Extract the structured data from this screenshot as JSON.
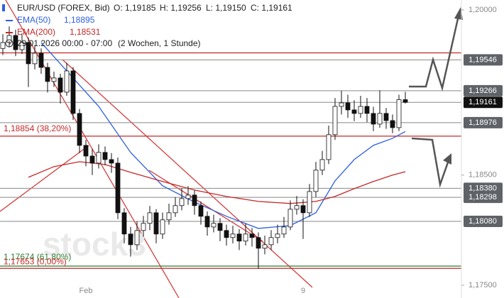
{
  "chart_data": {
    "type": "candlestick",
    "watermark": "stock3",
    "legend": {
      "symbol": "EUR/USD (FOREX, Bid)",
      "ohlc": [
        "O: 1,19185",
        "H: 1,19256",
        "L: 1,19150",
        "C: 1,19161"
      ],
      "time": "29.01.2026 00:00 - 07:00",
      "period": "(2 Wochen, 1 Stunde)"
    },
    "categories": [
      null,
      null,
      null,
      null,
      null,
      null,
      null,
      null,
      null,
      null,
      null,
      null,
      null,
      "Feb",
      null,
      null,
      null,
      null,
      null,
      null,
      null,
      null,
      null,
      null,
      null,
      null,
      null,
      null,
      null,
      null,
      null,
      null,
      null,
      null,
      null,
      null,
      null,
      null,
      null,
      null,
      null,
      null,
      null,
      null,
      null,
      null,
      null,
      "9",
      null,
      null,
      null,
      null,
      null,
      null,
      null,
      null,
      null,
      null,
      null,
      null,
      null,
      null,
      null,
      null
    ],
    "ylim": [
      1.17384,
      1.2009
    ],
    "yticks": [
      {
        "value": 1.2,
        "label": "1,20000"
      },
      {
        "value": 1.185,
        "label": "1,18500"
      },
      {
        "value": 1.175,
        "label": "1,17500"
      }
    ],
    "series": [
      {
        "name": "EUR/USD (FOREX, Bid)",
        "up_color": "#ffffff",
        "down_color": "#111111",
        "open": [
          1.1965,
          1.19704,
          1.19768,
          1.19639,
          1.19704,
          1.19511,
          1.19607,
          1.19478,
          1.1935,
          1.19382,
          1.19253,
          1.19446,
          1.1906,
          1.1877,
          1.18673,
          1.18609,
          1.18706,
          1.18641,
          1.18609,
          1.18158,
          1.17965,
          1.17868,
          1.17997,
          1.18062,
          1.18158,
          1.17965,
          1.18094,
          1.18158,
          1.18223,
          1.18287,
          1.18319,
          1.18223,
          1.18126,
          1.18029,
          1.18062,
          1.17997,
          1.17933,
          1.17965,
          1.17901,
          1.17965,
          1.17933,
          1.17836,
          1.17868,
          1.17933,
          1.17965,
          1.18029,
          1.1819,
          1.18223,
          1.18158,
          1.18351,
          1.18545,
          1.18641,
          1.18867,
          1.19124,
          1.19156,
          1.19092,
          1.1906,
          1.19124,
          1.1906,
          1.18963,
          1.1906,
          1.18995,
          1.18931,
          1.19185
        ],
        "high": [
          1.1978,
          1.1985,
          1.1982,
          1.1979,
          1.1975,
          1.1968,
          1.1965,
          1.1952,
          1.1944,
          1.1942,
          1.1952,
          1.1948,
          1.191,
          1.1882,
          1.1874,
          1.1878,
          1.1876,
          1.187,
          1.1866,
          1.182,
          1.1803,
          1.1808,
          1.1813,
          1.1822,
          1.1819,
          1.1816,
          1.1824,
          1.183,
          1.1838,
          1.184,
          1.1836,
          1.1826,
          1.1817,
          1.1814,
          1.1811,
          1.1805,
          1.1804,
          1.1801,
          1.1806,
          1.1802,
          1.1798,
          1.1795,
          1.18,
          1.1805,
          1.1812,
          1.1827,
          1.1831,
          1.1828,
          1.1842,
          1.1862,
          1.1872,
          1.1895,
          1.192,
          1.19266,
          1.1923,
          1.1918,
          1.1922,
          1.192,
          1.1912,
          1.1927,
          1.1911,
          1.1905,
          1.1923,
          1.19256
        ],
        "low": [
          1.1959,
          1.1966,
          1.1958,
          1.196,
          1.193,
          1.1946,
          1.1942,
          1.1925,
          1.193,
          1.1915,
          1.1922,
          1.19,
          1.187,
          1.1858,
          1.185,
          1.1856,
          1.1859,
          1.1852,
          1.181,
          1.1788,
          1.1776,
          1.1782,
          1.1794,
          1.18,
          1.1788,
          1.1792,
          1.1805,
          1.1812,
          1.1818,
          1.1823,
          1.1814,
          1.1805,
          1.1795,
          1.1798,
          1.179,
          1.1786,
          1.1788,
          1.1782,
          1.1786,
          1.1785,
          1.1765,
          1.1778,
          1.1782,
          1.1788,
          1.1793,
          1.18,
          1.1814,
          1.1792,
          1.1812,
          1.183,
          1.185,
          1.186,
          1.1882,
          1.1905,
          1.1902,
          1.1899,
          1.1902,
          1.1898,
          1.189,
          1.1893,
          1.1892,
          1.1888,
          1.189,
          1.1915
        ],
        "close": [
          1.19704,
          1.19768,
          1.19639,
          1.19704,
          1.19511,
          1.19607,
          1.19478,
          1.1935,
          1.19382,
          1.19253,
          1.19446,
          1.1906,
          1.1877,
          1.18673,
          1.18609,
          1.18706,
          1.18641,
          1.18609,
          1.18158,
          1.17965,
          1.17868,
          1.17997,
          1.18062,
          1.18158,
          1.17965,
          1.18094,
          1.18158,
          1.18223,
          1.18287,
          1.18319,
          1.18223,
          1.18126,
          1.18029,
          1.18062,
          1.17997,
          1.17933,
          1.17965,
          1.17901,
          1.17965,
          1.17933,
          1.17836,
          1.17868,
          1.17933,
          1.17965,
          1.18029,
          1.1819,
          1.18223,
          1.18158,
          1.18351,
          1.18545,
          1.18641,
          1.18867,
          1.19124,
          1.19156,
          1.19092,
          1.1906,
          1.19124,
          1.1906,
          1.18963,
          1.1906,
          1.18995,
          1.18931,
          1.19185,
          1.19161
        ]
      }
    ],
    "indicators": [
      {
        "name": "EMA(50)",
        "value_label": "1,18895",
        "color": "#2f5fe0",
        "x": [
          6,
          10,
          15,
          20,
          25,
          30,
          35,
          40,
          45,
          49,
          52,
          55,
          58,
          61,
          63
        ],
        "values": [
          1.19704,
          1.19446,
          1.19124,
          1.18706,
          1.18403,
          1.18255,
          1.18126,
          1.18016,
          1.18042,
          1.18158,
          1.18448,
          1.18641,
          1.1877,
          1.18834,
          1.18895
        ]
      },
      {
        "name": "EMA(200)",
        "value_label": "1,18531",
        "color": "#c62828",
        "x": [
          4,
          8,
          12,
          16,
          20,
          25,
          30,
          35,
          40,
          45,
          49,
          52,
          55,
          58,
          61,
          63
        ],
        "values": [
          1.1848,
          1.18577,
          1.18622,
          1.18596,
          1.18525,
          1.18442,
          1.18364,
          1.18306,
          1.18261,
          1.18242,
          1.18261,
          1.18306,
          1.18377,
          1.18442,
          1.185,
          1.18531
        ]
      }
    ],
    "price_levels": [
      {
        "value": 1.19546,
        "label": "1,19546",
        "color": "#5f6368"
      },
      {
        "value": 1.19266,
        "label": "1,19266",
        "color": "#5f6368"
      },
      {
        "value": 1.19161,
        "label": "1,19161",
        "color": "#111111"
      },
      {
        "value": 1.18976,
        "label": "1,18976",
        "color": "#5f6368"
      },
      {
        "value": 1.1838,
        "label": "1,18380",
        "color": "#5f6368"
      },
      {
        "value": 1.18298,
        "label": "1,18298",
        "color": "#5f6368"
      },
      {
        "value": 1.1808,
        "label": "1,18080",
        "color": "#5f6368"
      }
    ],
    "lines": [
      {
        "value": 1.1961,
        "color": "#c62828"
      },
      {
        "value": 1.18854,
        "label": "1,18854 (38,20%)",
        "color": "#c62828"
      },
      {
        "value": 1.17674,
        "label": "1,17674 (61,80%)",
        "color": "#2e7d32"
      },
      {
        "value": 1.17653,
        "label": "1,17653 (0,00%)",
        "color": "#c62828"
      }
    ]
  }
}
